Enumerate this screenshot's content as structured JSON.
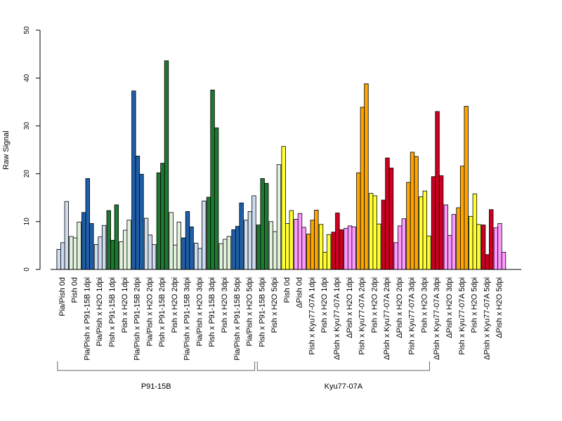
{
  "chart_data": {
    "type": "bar",
    "ylabel": "Raw Signal",
    "ylim": [
      0,
      50
    ],
    "yticks": [
      0,
      10,
      20,
      30,
      40,
      50
    ],
    "colors": {
      "pale_blue": "#cddcee",
      "mid_blue": "#1f5fa8",
      "pale_green": "#e1f2dc",
      "dark_green": "#1e7a30",
      "yellow": "#ffff33",
      "orange": "#ffa500",
      "pink": "#ff99ff",
      "red": "#cc0022"
    },
    "groups": [
      {
        "label": "P91-15B",
        "from": 0,
        "to": 15
      },
      {
        "label": "Kyu77-07A",
        "from": 16,
        "to": 29
      }
    ],
    "categories": [
      {
        "label": "Pia/Pish 0d",
        "color": "pale_blue",
        "values": [
          4.2,
          5.6,
          14.2
        ]
      },
      {
        "label": "Pish 0d",
        "color": "pale_green",
        "values": [
          6.9,
          6.6,
          9.9
        ]
      },
      {
        "label": "Pia/Pish x P91-15B 1dpi",
        "color": "mid_blue",
        "values": [
          11.9,
          19.0,
          9.6
        ]
      },
      {
        "label": "Pia/Pish x H2O 1dpi",
        "color": "pale_blue",
        "values": [
          5.2,
          6.8,
          9.2
        ]
      },
      {
        "label": "Pish x P91-15B 1dpi",
        "color": "dark_green",
        "values": [
          12.3,
          6.1,
          13.5
        ]
      },
      {
        "label": "Pish x H2O 1dpi",
        "color": "pale_green",
        "values": [
          5.8,
          8.2,
          10.3
        ]
      },
      {
        "label": "Pia/Pish x P91-15B 2dpi",
        "color": "mid_blue",
        "values": [
          37.3,
          23.7,
          19.9
        ]
      },
      {
        "label": "Pia/Pish x H2O 2dpi",
        "color": "pale_blue",
        "values": [
          10.7,
          7.2,
          5.2
        ]
      },
      {
        "label": "Pish x P91-15B 2dpi",
        "color": "dark_green",
        "values": [
          20.2,
          22.2,
          43.6
        ]
      },
      {
        "label": "Pish x H2O 2dpi",
        "color": "pale_green",
        "values": [
          11.9,
          5.1,
          9.9
        ]
      },
      {
        "label": "Pia/Pish x P91-15B 3dpi",
        "color": "mid_blue",
        "values": [
          6.6,
          12.1,
          8.9
        ]
      },
      {
        "label": "Pia/Pish x H2O 3dpi",
        "color": "pale_blue",
        "values": [
          5.5,
          4.4,
          14.3
        ]
      },
      {
        "label": "Pish x P91-15B 3dpi",
        "color": "dark_green",
        "values": [
          15.1,
          37.5,
          29.6
        ]
      },
      {
        "label": "Pish x H2O 3dpi",
        "color": "pale_green",
        "values": [
          5.4,
          6.3,
          6.9
        ]
      },
      {
        "label": "Pia/Pish x P91-15B 5dpi",
        "color": "mid_blue",
        "values": [
          8.3,
          9.0,
          13.9
        ]
      },
      {
        "label": "Pia/Pish x H2O 5dpi",
        "color": "pale_blue",
        "values": [
          10.3,
          12.1,
          15.4
        ]
      },
      {
        "label": "Pish x P91-15B 5dpi",
        "color": "dark_green",
        "values": [
          9.3,
          19.0,
          18.0
        ]
      },
      {
        "label": "Pish x H2O 5dpi",
        "color": "pale_green",
        "values": [
          10.0,
          7.9,
          21.9
        ]
      },
      {
        "label": "Pish 0d",
        "color": "yellow",
        "values": [
          25.7,
          9.6,
          12.3
        ]
      },
      {
        "label": "ΔPish 0d",
        "color": "pink",
        "values": [
          10.5,
          11.7,
          8.8
        ]
      },
      {
        "label": "Pish x Kyu77-07A 1dpi",
        "color": "orange",
        "values": [
          7.4,
          10.3,
          12.4
        ]
      },
      {
        "label": "Pish x H2O 1dpi",
        "color": "yellow",
        "values": [
          9.4,
          3.6,
          7.3
        ]
      },
      {
        "label": "ΔPish x Kyu77-07A 1dpi",
        "color": "red",
        "values": [
          7.8,
          11.8,
          8.3
        ]
      },
      {
        "label": "ΔPish x H2O 1dpi",
        "color": "pink",
        "values": [
          8.6,
          9.1,
          8.9
        ]
      },
      {
        "label": "Pish x Kyu77-07A 2dpi",
        "color": "orange",
        "values": [
          20.2,
          33.9,
          38.8
        ]
      },
      {
        "label": "Pish x H2O 2dpi",
        "color": "yellow",
        "values": [
          15.9,
          15.4,
          9.5
        ]
      },
      {
        "label": "ΔPish x Kyu77-07A 2dpi",
        "color": "red",
        "values": [
          14.5,
          23.3,
          21.2
        ]
      },
      {
        "label": "ΔPish x H2O 2dpi",
        "color": "pink",
        "values": [
          5.6,
          9.1,
          10.6
        ]
      },
      {
        "label": "Pish x Kyu77-07A 3dpi",
        "color": "orange",
        "values": [
          18.2,
          24.5,
          23.6
        ]
      },
      {
        "label": "Pish x H2O 3dpi",
        "color": "yellow",
        "values": [
          15.2,
          16.4,
          7.0
        ]
      },
      {
        "label": "ΔPish x Kyu77-07A 3dpi",
        "color": "red",
        "values": [
          19.4,
          33.0,
          19.6
        ]
      },
      {
        "label": "ΔPish x H2O 3dpi",
        "color": "pink",
        "values": [
          13.5,
          7.1,
          11.5
        ]
      },
      {
        "label": "Pish x Kyu77-07A 5dpi",
        "color": "orange",
        "values": [
          12.9,
          21.6,
          34.1
        ]
      },
      {
        "label": "Pish x H2O 5dpi",
        "color": "yellow",
        "values": [
          11.1,
          15.8,
          9.4
        ]
      },
      {
        "label": "ΔPish x Kyu77-07A 5dpi",
        "color": "red",
        "values": [
          9.3,
          3.1,
          12.5
        ]
      },
      {
        "label": "ΔPish x H2O 5dpi",
        "color": "pink",
        "values": [
          8.7,
          9.6,
          3.6
        ]
      }
    ]
  }
}
